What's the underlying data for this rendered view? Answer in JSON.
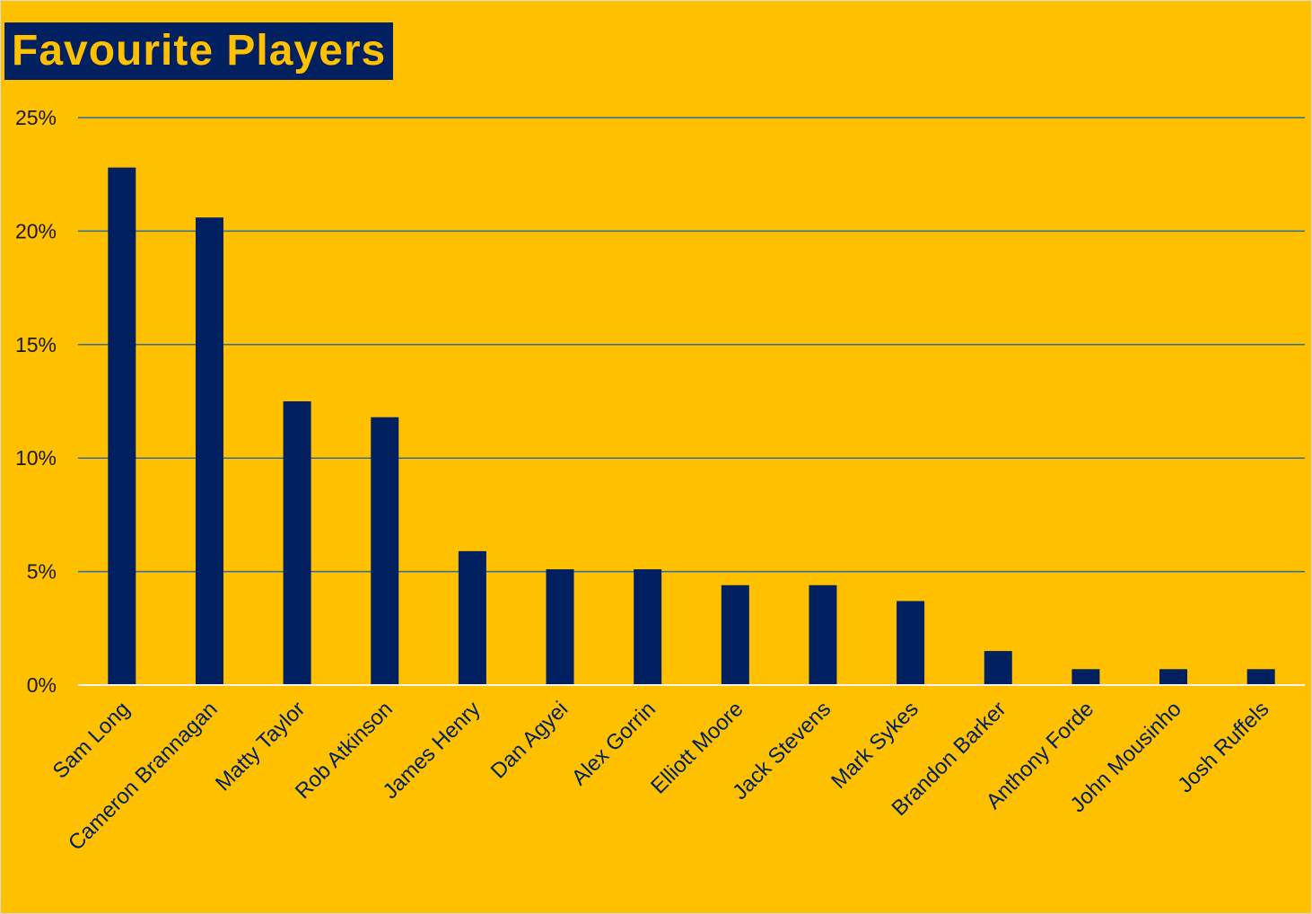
{
  "chart_data": {
    "type": "bar",
    "title": "Favourite Players",
    "xlabel": "",
    "ylabel": "",
    "ylim": [
      0,
      25
    ],
    "yticks": [
      0,
      5,
      10,
      15,
      20,
      25
    ],
    "ytick_format": "%",
    "grid": true,
    "legend": "none",
    "categories": [
      "Sam Long",
      "Cameron Brannagan",
      "Matty Taylor",
      "Rob Atkinson",
      "James Henry",
      "Dan Agyei",
      "Alex Gorrin",
      "Elliott Moore",
      "Jack Stevens",
      "Mark Sykes",
      "Brandon Barker",
      "Anthony Forde",
      "John Mousinho",
      "Josh Ruffels"
    ],
    "values": [
      22.8,
      20.6,
      12.5,
      11.8,
      5.9,
      5.1,
      5.1,
      4.4,
      4.4,
      3.7,
      1.5,
      0.7,
      0.7,
      0.7
    ]
  },
  "colors": {
    "background": "#ffc000",
    "bar": "#002060",
    "gridline": "#2e6b9e",
    "baseline": "#f2f2f2",
    "title_bg": "#002060",
    "title_text": "#ffc000"
  }
}
